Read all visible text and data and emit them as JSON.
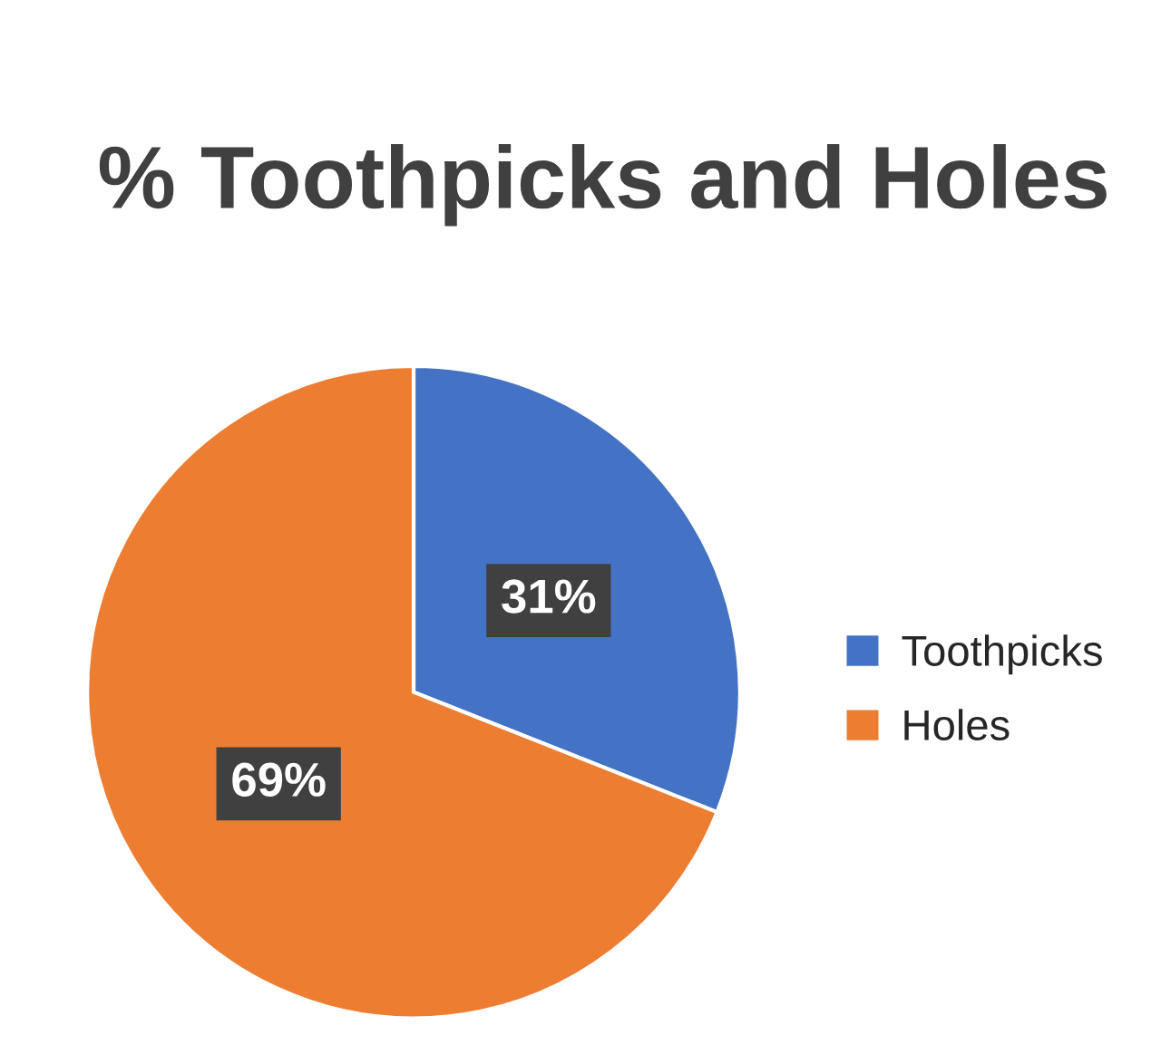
{
  "chart_data": {
    "type": "pie",
    "title": "% Toothpicks and Holes",
    "categories": [
      "Toothpicks",
      "Holes"
    ],
    "values": [
      31,
      69
    ],
    "colors": [
      "#4472c4",
      "#ed7d31"
    ],
    "value_labels": [
      "31%",
      "69%"
    ],
    "legend": "right"
  }
}
